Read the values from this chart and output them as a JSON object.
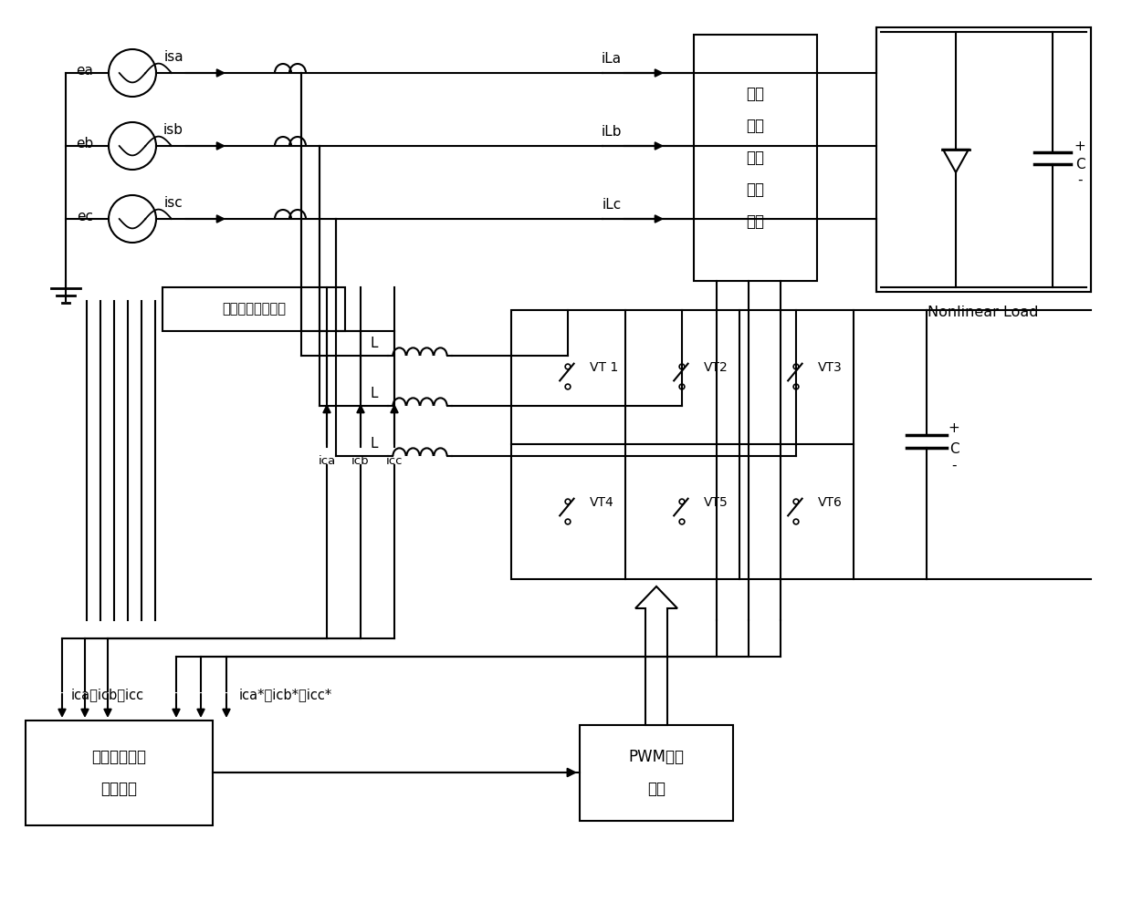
{
  "bg": "#ffffff",
  "src_labels": [
    "ea",
    "eb",
    "ec"
  ],
  "src_cur_labels": [
    "isa",
    "isb",
    "isc"
  ],
  "load_cur_labels": [
    "iLa",
    "iLb",
    "iLc"
  ],
  "comp_cur_labels": [
    "ica",
    "icb",
    "icc"
  ],
  "vt_labels": [
    "VT 1",
    "VT2",
    "VT3",
    "VT4",
    "VT5",
    "VT6"
  ],
  "box_comp_text": "补偿电流检测模块",
  "box_load_text": "负载\n谐波\n电流\n检测\n模块",
  "box_ctrl_text": "谐波电流跟踪\n控制模块",
  "box_pwm_text": "PWM调制\n模块",
  "nonlinear_text": "Nonlinear Load",
  "L_label": "L",
  "C_label": "C",
  "plus_label": "+",
  "minus_label": "-",
  "bottom_left": "ica、icb、icc",
  "bottom_right": "ica*、icb*、icc*"
}
